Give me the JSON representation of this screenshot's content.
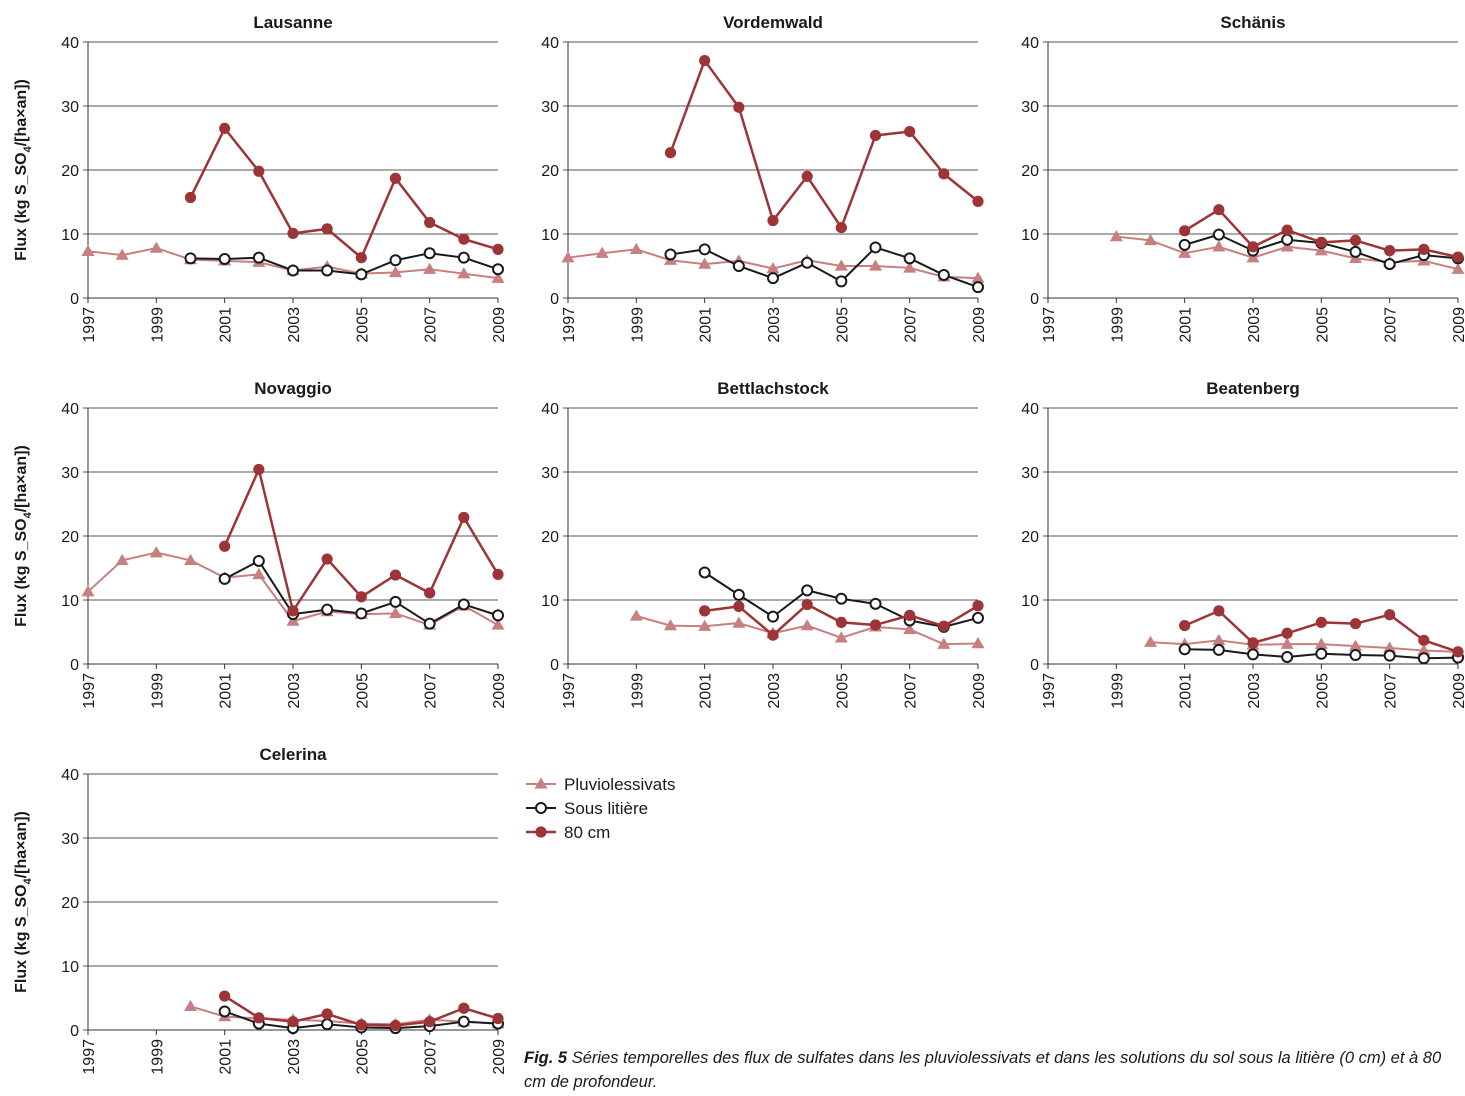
{
  "figure": {
    "caption_label": "Fig. 5",
    "caption_text": "Séries temporelles des flux de sulfates dans les pluviolessivats et dans les solutions du sol sous la litière (0 cm) et à 80 cm de profondeur."
  },
  "colors": {
    "pluvio": "#c77f7f",
    "litiere": "#1a1a1a",
    "cm80": "#9c3438",
    "grid": "#555555"
  },
  "legend": [
    "Pluviolessivats",
    "Sous litière",
    "80 cm"
  ],
  "chart_data": [
    {
      "type": "line",
      "title": "Lausanne",
      "ylabel_parts": [
        "Flux (kg S_SO",
        "4",
        "/[ha×an])"
      ],
      "x": [
        1997,
        1998,
        1999,
        2000,
        2001,
        2002,
        2003,
        2004,
        2005,
        2006,
        2007,
        2008,
        2009
      ],
      "xticks": [
        "1997",
        "1999",
        "2001",
        "2003",
        "2005",
        "2007",
        "2009"
      ],
      "yticks": [
        "0",
        "10",
        "20",
        "30",
        "40"
      ],
      "ylim": [
        0,
        40
      ],
      "series": [
        {
          "name": "Pluviolessivats",
          "values": [
            7.3,
            6.7,
            7.8,
            6.0,
            5.8,
            5.6,
            4.3,
            4.9,
            3.8,
            4.0,
            4.5,
            3.8,
            3.1
          ]
        },
        {
          "name": "Sous litière",
          "values": [
            null,
            null,
            null,
            6.2,
            6.1,
            6.3,
            4.3,
            4.3,
            3.7,
            5.9,
            7.0,
            6.3,
            4.5
          ]
        },
        {
          "name": "80 cm",
          "values": [
            null,
            null,
            null,
            15.7,
            26.5,
            19.8,
            10.1,
            10.8,
            6.3,
            18.7,
            11.8,
            9.2,
            7.6
          ]
        }
      ]
    },
    {
      "type": "line",
      "title": "Vordemwald",
      "x": [
        1997,
        1998,
        1999,
        2000,
        2001,
        2002,
        2003,
        2004,
        2005,
        2006,
        2007,
        2008,
        2009
      ],
      "xticks": [
        "1997",
        "1999",
        "2001",
        "2003",
        "2005",
        "2007",
        "2009"
      ],
      "yticks": [
        "0",
        "10",
        "20",
        "30",
        "40"
      ],
      "ylim": [
        0,
        40
      ],
      "series": [
        {
          "name": "Pluviolessivats",
          "values": [
            6.3,
            7.0,
            7.6,
            5.9,
            5.3,
            5.8,
            4.6,
            5.9,
            5.0,
            5.0,
            4.7,
            3.3,
            3.1
          ]
        },
        {
          "name": "Sous litière",
          "values": [
            null,
            null,
            null,
            6.8,
            7.6,
            5.0,
            3.1,
            5.5,
            2.6,
            7.9,
            6.2,
            3.6,
            1.7
          ]
        },
        {
          "name": "80 cm",
          "values": [
            null,
            null,
            null,
            22.7,
            37.1,
            29.8,
            12.1,
            19.0,
            11.0,
            25.4,
            26.0,
            19.4,
            15.1
          ]
        }
      ]
    },
    {
      "type": "line",
      "title": "Schänis",
      "x": [
        1997,
        1998,
        1999,
        2000,
        2001,
        2002,
        2003,
        2004,
        2005,
        2006,
        2007,
        2008,
        2009
      ],
      "xticks": [
        "1997",
        "1999",
        "2001",
        "2003",
        "2005",
        "2007",
        "2009"
      ],
      "yticks": [
        "0",
        "10",
        "20",
        "30",
        "40"
      ],
      "ylim": [
        0,
        40
      ],
      "series": [
        {
          "name": "Pluviolessivats",
          "values": [
            null,
            null,
            9.6,
            9.0,
            7.0,
            8.0,
            6.3,
            8.0,
            7.4,
            6.2,
            5.6,
            5.8,
            4.5
          ]
        },
        {
          "name": "Sous litière",
          "values": [
            null,
            null,
            null,
            null,
            8.3,
            9.9,
            7.4,
            9.1,
            8.6,
            7.2,
            5.3,
            6.7,
            6.2
          ]
        },
        {
          "name": "80 cm",
          "values": [
            null,
            null,
            null,
            null,
            10.5,
            13.8,
            8.0,
            10.6,
            8.7,
            9.0,
            7.4,
            7.6,
            6.4
          ]
        }
      ]
    },
    {
      "type": "line",
      "title": "Novaggio",
      "ylabel_parts": [
        "Flux (kg S_SO",
        "4",
        "/[ha×an])"
      ],
      "x": [
        1997,
        1998,
        1999,
        2000,
        2001,
        2002,
        2003,
        2004,
        2005,
        2006,
        2007,
        2008,
        2009
      ],
      "xticks": [
        "1997",
        "1999",
        "2001",
        "2003",
        "2005",
        "2007",
        "2009"
      ],
      "yticks": [
        "0",
        "10",
        "20",
        "30",
        "40"
      ],
      "ylim": [
        0,
        40
      ],
      "series": [
        {
          "name": "Pluviolessivats",
          "values": [
            11.3,
            16.2,
            17.4,
            16.2,
            13.5,
            14.0,
            6.7,
            8.2,
            7.8,
            7.9,
            6.1,
            9.1,
            6.1
          ]
        },
        {
          "name": "Sous litière",
          "values": [
            null,
            null,
            null,
            null,
            13.3,
            16.1,
            7.8,
            8.5,
            7.9,
            9.7,
            6.3,
            9.3,
            7.6
          ]
        },
        {
          "name": "80 cm",
          "values": [
            null,
            null,
            null,
            null,
            18.4,
            30.4,
            8.3,
            16.4,
            10.5,
            13.9,
            11.1,
            22.9,
            14.0
          ]
        }
      ]
    },
    {
      "type": "line",
      "title": "Bettlachstock",
      "x": [
        1997,
        1998,
        1999,
        2000,
        2001,
        2002,
        2003,
        2004,
        2005,
        2006,
        2007,
        2008,
        2009
      ],
      "xticks": [
        "1997",
        "1999",
        "2001",
        "2003",
        "2005",
        "2007",
        "2009"
      ],
      "yticks": [
        "0",
        "10",
        "20",
        "30",
        "40"
      ],
      "ylim": [
        0,
        40
      ],
      "series": [
        {
          "name": "Pluviolessivats",
          "values": [
            null,
            null,
            7.5,
            6.0,
            5.9,
            6.4,
            4.8,
            6.0,
            4.1,
            5.8,
            5.4,
            3.1,
            3.2
          ]
        },
        {
          "name": "Sous litière",
          "values": [
            null,
            null,
            null,
            null,
            14.3,
            10.8,
            7.4,
            11.5,
            10.2,
            9.4,
            6.8,
            5.8,
            7.2
          ]
        },
        {
          "name": "80 cm",
          "values": [
            null,
            null,
            null,
            null,
            8.3,
            9.0,
            4.5,
            9.3,
            6.5,
            6.1,
            7.6,
            5.9,
            9.1
          ]
        }
      ]
    },
    {
      "type": "line",
      "title": "Beatenberg",
      "x": [
        1997,
        1998,
        1999,
        2000,
        2001,
        2002,
        2003,
        2004,
        2005,
        2006,
        2007,
        2008,
        2009
      ],
      "xticks": [
        "1997",
        "1999",
        "2001",
        "2003",
        "2005",
        "2007",
        "2009"
      ],
      "yticks": [
        "0",
        "10",
        "20",
        "30",
        "40"
      ],
      "ylim": [
        0,
        40
      ],
      "series": [
        {
          "name": "Pluviolessivats",
          "values": [
            null,
            null,
            null,
            3.4,
            3.1,
            3.7,
            3.0,
            3.1,
            3.1,
            2.8,
            2.5,
            2.1,
            1.9
          ]
        },
        {
          "name": "Sous litière",
          "values": [
            null,
            null,
            null,
            null,
            2.3,
            2.2,
            1.5,
            1.1,
            1.6,
            1.4,
            1.3,
            0.9,
            1.0
          ]
        },
        {
          "name": "80 cm",
          "values": [
            null,
            null,
            null,
            null,
            6.0,
            8.3,
            3.3,
            4.8,
            6.5,
            6.3,
            7.7,
            3.7,
            1.9
          ]
        }
      ]
    },
    {
      "type": "line",
      "title": "Celerina",
      "ylabel_parts": [
        "Flux (kg S_SO",
        "4",
        "/[ha×an])"
      ],
      "x": [
        1997,
        1998,
        1999,
        2000,
        2001,
        2002,
        2003,
        2004,
        2005,
        2006,
        2007,
        2008,
        2009
      ],
      "xticks": [
        "1997",
        "1999",
        "2001",
        "2003",
        "2005",
        "2007",
        "2009"
      ],
      "yticks": [
        "0",
        "10",
        "20",
        "30",
        "40"
      ],
      "ylim": [
        0,
        40
      ],
      "series": [
        {
          "name": "Pluviolessivats",
          "values": [
            null,
            null,
            null,
            3.7,
            2.1,
            1.8,
            1.6,
            1.4,
            1.0,
            0.9,
            1.6,
            1.3,
            1.0
          ]
        },
        {
          "name": "Sous litière",
          "values": [
            null,
            null,
            null,
            null,
            2.9,
            1.0,
            0.3,
            0.9,
            0.4,
            0.3,
            0.6,
            1.3,
            1.0
          ]
        },
        {
          "name": "80 cm",
          "values": [
            null,
            null,
            null,
            null,
            5.3,
            1.9,
            1.3,
            2.5,
            0.8,
            0.7,
            1.3,
            3.4,
            1.8
          ]
        }
      ]
    }
  ]
}
